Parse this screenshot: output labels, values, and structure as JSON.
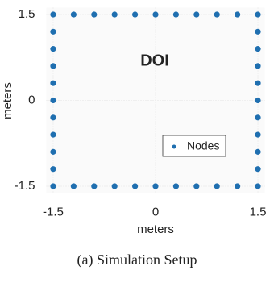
{
  "chart_data": {
    "type": "scatter",
    "annotation": "DOI",
    "caption": "(a) Simulation Setup",
    "xlabel": "meters",
    "ylabel": "meters",
    "series": [
      {
        "name": "Nodes",
        "color": "#1f6fb0",
        "x": [
          -1.5,
          -1.2,
          -0.9,
          -0.6,
          -0.3,
          0,
          0.3,
          0.6,
          0.9,
          1.2,
          1.5,
          1.5,
          1.5,
          1.5,
          1.5,
          1.5,
          1.5,
          1.5,
          1.5,
          1.5,
          1.5,
          1.2,
          0.9,
          0.6,
          0.3,
          0,
          -0.3,
          -0.6,
          -0.9,
          -1.2,
          -1.5,
          -1.5,
          -1.5,
          -1.5,
          -1.5,
          -1.5,
          -1.5,
          -1.5,
          -1.5,
          -1.5
        ],
        "y": [
          1.5,
          1.5,
          1.5,
          1.5,
          1.5,
          1.5,
          1.5,
          1.5,
          1.5,
          1.5,
          1.5,
          1.2,
          0.9,
          0.6,
          0.3,
          0,
          -0.3,
          -0.6,
          -0.9,
          -1.2,
          -1.5,
          -1.5,
          -1.5,
          -1.5,
          -1.5,
          -1.5,
          -1.5,
          -1.5,
          -1.5,
          -1.5,
          -1.5,
          -1.2,
          -0.9,
          -0.6,
          -0.3,
          0,
          0.3,
          0.6,
          0.9,
          1.2
        ]
      }
    ],
    "xlim": [
      -1.6,
      1.6
    ],
    "ylim": [
      -1.62,
      1.62
    ],
    "xticks": [
      -1.5,
      0,
      1.5
    ],
    "yticks": [
      -1.5,
      0,
      1.5
    ],
    "grid": true
  }
}
